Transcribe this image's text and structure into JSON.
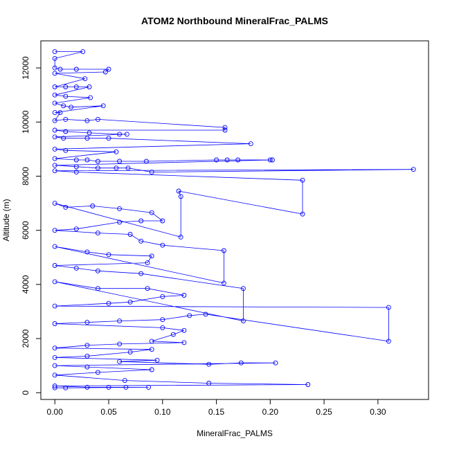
{
  "chart_data": {
    "type": "line",
    "title": "ATOM2 Northbound MineralFrac_PALMS",
    "xlabel": "MineralFrac_PALMS",
    "ylabel": "Altitude (m)",
    "xlim": [
      -0.013,
      0.347
    ],
    "ylim": [
      -250,
      13000
    ],
    "xticks": [
      "0.00",
      "0.05",
      "0.10",
      "0.15",
      "0.20",
      "0.25",
      "0.30"
    ],
    "xtick_values": [
      0,
      0.05,
      0.1,
      0.15,
      0.2,
      0.25,
      0.3
    ],
    "yticks": [
      "0",
      "2000",
      "4000",
      "6000",
      "8000",
      "10000",
      "12000"
    ],
    "ytick_values": [
      0,
      2000,
      4000,
      6000,
      8000,
      10000,
      12000
    ],
    "grid": false,
    "marker": "open-circle",
    "series": [
      {
        "color": "#0000ff",
        "points": [
          [
            0.0,
            12600
          ],
          [
            0.026,
            12600
          ],
          [
            0.0,
            12350
          ],
          [
            0.0,
            12000
          ],
          [
            0.005,
            11950
          ],
          [
            0.02,
            11950
          ],
          [
            0.05,
            11950
          ],
          [
            0.047,
            11850
          ],
          [
            0.0,
            11800
          ],
          [
            0.028,
            11600
          ],
          [
            0.0,
            11300
          ],
          [
            0.01,
            11300
          ],
          [
            0.02,
            11300
          ],
          [
            0.032,
            11300
          ],
          [
            0.0,
            11000
          ],
          [
            0.01,
            10950
          ],
          [
            0.033,
            10900
          ],
          [
            0.0,
            10700
          ],
          [
            0.008,
            10600
          ],
          [
            0.015,
            10550
          ],
          [
            0.045,
            10600
          ],
          [
            0.0,
            10350
          ],
          [
            0.005,
            10350
          ],
          [
            0.0,
            10050
          ],
          [
            0.01,
            10100
          ],
          [
            0.03,
            10050
          ],
          [
            0.04,
            10100
          ],
          [
            0.158,
            9800
          ],
          [
            0.158,
            9700
          ],
          [
            0.0,
            9700
          ],
          [
            0.01,
            9650
          ],
          [
            0.032,
            9600
          ],
          [
            0.06,
            9550
          ],
          [
            0.067,
            9550
          ],
          [
            0.0,
            9450
          ],
          [
            0.008,
            9400
          ],
          [
            0.03,
            9400
          ],
          [
            0.05,
            9400
          ],
          [
            0.182,
            9200
          ],
          [
            0.0,
            9000
          ],
          [
            0.01,
            8950
          ],
          [
            0.057,
            8900
          ],
          [
            0.0,
            8650
          ],
          [
            0.02,
            8600
          ],
          [
            0.03,
            8600
          ],
          [
            0.04,
            8550
          ],
          [
            0.06,
            8550
          ],
          [
            0.085,
            8550
          ],
          [
            0.15,
            8600
          ],
          [
            0.16,
            8600
          ],
          [
            0.17,
            8600
          ],
          [
            0.2,
            8600
          ],
          [
            0.202,
            8600
          ],
          [
            0.0,
            8400
          ],
          [
            0.02,
            8350
          ],
          [
            0.04,
            8300
          ],
          [
            0.057,
            8300
          ],
          [
            0.068,
            8300
          ],
          [
            0.09,
            8150
          ],
          [
            0.333,
            8250
          ],
          [
            0.0,
            8200
          ],
          [
            0.02,
            8150
          ],
          [
            0.23,
            7850
          ],
          [
            0.23,
            6600
          ],
          [
            0.115,
            7450
          ],
          [
            0.117,
            7250
          ],
          [
            0.117,
            5750
          ],
          [
            0.0,
            7000
          ],
          [
            0.01,
            6850
          ],
          [
            0.035,
            6900
          ],
          [
            0.06,
            6800
          ],
          [
            0.09,
            6650
          ],
          [
            0.1,
            6350
          ],
          [
            0.08,
            6350
          ],
          [
            0.06,
            6300
          ],
          [
            0.02,
            6050
          ],
          [
            0.0,
            6000
          ],
          [
            0.04,
            5900
          ],
          [
            0.07,
            5850
          ],
          [
            0.08,
            5600
          ],
          [
            0.1,
            5450
          ],
          [
            0.157,
            5250
          ],
          [
            0.157,
            4050
          ],
          [
            0.0,
            5400
          ],
          [
            0.03,
            5200
          ],
          [
            0.05,
            5100
          ],
          [
            0.09,
            5050
          ],
          [
            0.086,
            4800
          ],
          [
            0.0,
            4700
          ],
          [
            0.02,
            4600
          ],
          [
            0.04,
            4500
          ],
          [
            0.08,
            4400
          ],
          [
            0.175,
            3850
          ],
          [
            0.175,
            2650
          ],
          [
            0.0,
            4100
          ],
          [
            0.04,
            3850
          ],
          [
            0.086,
            3850
          ],
          [
            0.12,
            3600
          ],
          [
            0.1,
            3550
          ],
          [
            0.07,
            3350
          ],
          [
            0.05,
            3300
          ],
          [
            0.0,
            3200
          ],
          [
            0.31,
            3150
          ],
          [
            0.31,
            1900
          ],
          [
            0.14,
            2900
          ],
          [
            0.125,
            2850
          ],
          [
            0.1,
            2700
          ],
          [
            0.06,
            2650
          ],
          [
            0.03,
            2600
          ],
          [
            0.0,
            2550
          ],
          [
            0.1,
            2400
          ],
          [
            0.12,
            2300
          ],
          [
            0.11,
            2150
          ],
          [
            0.09,
            1900
          ],
          [
            0.12,
            1850
          ],
          [
            0.06,
            1800
          ],
          [
            0.03,
            1750
          ],
          [
            0.0,
            1650
          ],
          [
            0.09,
            1600
          ],
          [
            0.07,
            1500
          ],
          [
            0.03,
            1350
          ],
          [
            0.0,
            1300
          ],
          [
            0.095,
            1200
          ],
          [
            0.06,
            1150
          ],
          [
            0.143,
            1050
          ],
          [
            0.173,
            1100
          ],
          [
            0.205,
            1100
          ],
          [
            0.0,
            1000
          ],
          [
            0.03,
            950
          ],
          [
            0.09,
            850
          ],
          [
            0.04,
            750
          ],
          [
            0.0,
            650
          ],
          [
            0.065,
            450
          ],
          [
            0.143,
            350
          ],
          [
            0.235,
            300
          ],
          [
            0.0,
            250
          ],
          [
            0.03,
            200
          ],
          [
            0.05,
            200
          ],
          [
            0.066,
            200
          ],
          [
            0.087,
            200
          ],
          [
            0.01,
            180
          ],
          [
            0.0,
            180
          ]
        ]
      }
    ]
  }
}
